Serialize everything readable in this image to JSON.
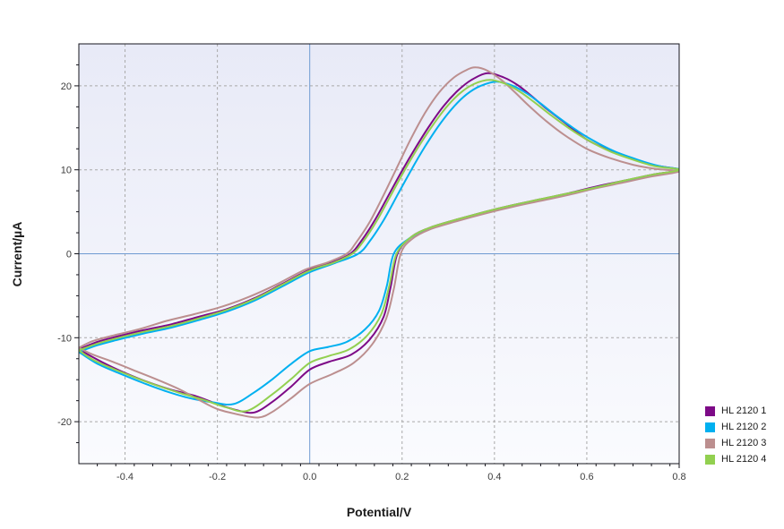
{
  "chart_data": {
    "type": "line",
    "title": "",
    "xlabel": "Potential/V",
    "ylabel": "Current/µA",
    "xlim": [
      -0.5,
      0.8
    ],
    "ylim": [
      -25,
      25
    ],
    "x_tick_values": [
      -0.4,
      -0.2,
      0.0,
      0.2,
      0.4,
      0.6,
      0.8
    ],
    "x_tick_labels": [
      "-0.4",
      "-0.2",
      "0.0",
      "0.2",
      "0.4",
      "0.6",
      "0.8"
    ],
    "x_minor_tick_step": 0.04,
    "y_tick_values": [
      20,
      10,
      0,
      -10,
      -20
    ],
    "y_tick_labels": [
      "20",
      "10",
      "0",
      "-10",
      "-20"
    ],
    "y_minor_tick_step": 2.5,
    "grid": {
      "style": "dashed",
      "color": "#a9a9a9",
      "on_major_ticks": true
    },
    "zero_axis_lines": {
      "color": "#6f9ad2",
      "x_zero": true,
      "y_zero": true
    },
    "plot_background": {
      "top": "#e8eaf7",
      "bottom": "#fafbfe"
    },
    "frame_color": "#14141c",
    "legend_position": "outside-right-bottom",
    "series": [
      {
        "name": "HL 2120 1",
        "color": "#7d0a87",
        "anodic_peak": {
          "V": 0.385,
          "uA": 21.5
        },
        "cathodic_peak": {
          "V": -0.12,
          "uA": -18.9
        },
        "points": [
          [
            -0.5,
            -11.4
          ],
          [
            -0.46,
            -10.5
          ],
          [
            -0.42,
            -9.9
          ],
          [
            -0.36,
            -9.1
          ],
          [
            -0.3,
            -8.4
          ],
          [
            -0.24,
            -7.5
          ],
          [
            -0.18,
            -6.6
          ],
          [
            -0.12,
            -5.3
          ],
          [
            -0.06,
            -3.6
          ],
          [
            0,
            -1.9
          ],
          [
            0.05,
            -1
          ],
          [
            0.088,
            0
          ],
          [
            0.11,
            1.4
          ],
          [
            0.14,
            3.9
          ],
          [
            0.17,
            6.9
          ],
          [
            0.2,
            9.9
          ],
          [
            0.23,
            12.7
          ],
          [
            0.26,
            15.3
          ],
          [
            0.29,
            17.6
          ],
          [
            0.32,
            19.4
          ],
          [
            0.35,
            20.7
          ],
          [
            0.385,
            21.5
          ],
          [
            0.42,
            21
          ],
          [
            0.45,
            20.1
          ],
          [
            0.48,
            18.8
          ],
          [
            0.51,
            17.4
          ],
          [
            0.55,
            15.7
          ],
          [
            0.6,
            13.6
          ],
          [
            0.65,
            12.3
          ],
          [
            0.7,
            11.3
          ],
          [
            0.75,
            10.5
          ],
          [
            0.8,
            10
          ],
          [
            0.74,
            9.4
          ],
          [
            0.68,
            8.7
          ],
          [
            0.62,
            8
          ],
          [
            0.56,
            7.2
          ],
          [
            0.5,
            6.5
          ],
          [
            0.44,
            5.8
          ],
          [
            0.38,
            5
          ],
          [
            0.32,
            4.1
          ],
          [
            0.26,
            3.1
          ],
          [
            0.22,
            2
          ],
          [
            0.19,
            0
          ],
          [
            0.175,
            -4
          ],
          [
            0.16,
            -7.5
          ],
          [
            0.13,
            -10.2
          ],
          [
            0.09,
            -12
          ],
          [
            0.04,
            -12.9
          ],
          [
            0,
            -13.8
          ],
          [
            -0.04,
            -15.8
          ],
          [
            -0.08,
            -17.6
          ],
          [
            -0.12,
            -18.9
          ],
          [
            -0.16,
            -18.6
          ],
          [
            -0.2,
            -17.9
          ],
          [
            -0.25,
            -16.9
          ],
          [
            -0.3,
            -16.2
          ],
          [
            -0.35,
            -15.3
          ],
          [
            -0.4,
            -14.2
          ],
          [
            -0.45,
            -12.9
          ],
          [
            -0.5,
            -11.4
          ]
        ]
      },
      {
        "name": "HL 2120 2",
        "color": "#00b0f0",
        "anodic_peak": {
          "V": 0.405,
          "uA": 20.5
        },
        "cathodic_peak": {
          "V": -0.165,
          "uA": -17.9
        },
        "points": [
          [
            -0.5,
            -11.7
          ],
          [
            -0.46,
            -10.9
          ],
          [
            -0.42,
            -10.3
          ],
          [
            -0.36,
            -9.5
          ],
          [
            -0.3,
            -8.8
          ],
          [
            -0.24,
            -7.9
          ],
          [
            -0.18,
            -6.9
          ],
          [
            -0.12,
            -5.6
          ],
          [
            -0.06,
            -3.9
          ],
          [
            0,
            -2.2
          ],
          [
            0.055,
            -1.1
          ],
          [
            0.105,
            0
          ],
          [
            0.13,
            1.5
          ],
          [
            0.16,
            4
          ],
          [
            0.19,
            7
          ],
          [
            0.22,
            10
          ],
          [
            0.25,
            12.8
          ],
          [
            0.28,
            15.3
          ],
          [
            0.31,
            17.4
          ],
          [
            0.34,
            19
          ],
          [
            0.37,
            20
          ],
          [
            0.405,
            20.5
          ],
          [
            0.44,
            20
          ],
          [
            0.47,
            19.1
          ],
          [
            0.5,
            17.9
          ],
          [
            0.53,
            16.6
          ],
          [
            0.57,
            15
          ],
          [
            0.61,
            13.6
          ],
          [
            0.66,
            12.2
          ],
          [
            0.71,
            11.2
          ],
          [
            0.76,
            10.4
          ],
          [
            0.8,
            10
          ],
          [
            0.74,
            9.3
          ],
          [
            0.68,
            8.6
          ],
          [
            0.62,
            7.9
          ],
          [
            0.56,
            7.1
          ],
          [
            0.5,
            6.4
          ],
          [
            0.44,
            5.7
          ],
          [
            0.38,
            4.9
          ],
          [
            0.32,
            4
          ],
          [
            0.26,
            3
          ],
          [
            0.215,
            1.8
          ],
          [
            0.182,
            0
          ],
          [
            0.167,
            -3.8
          ],
          [
            0.15,
            -6.8
          ],
          [
            0.12,
            -9
          ],
          [
            0.08,
            -10.5
          ],
          [
            0.04,
            -11.1
          ],
          [
            0,
            -11.6
          ],
          [
            -0.04,
            -13.1
          ],
          [
            -0.08,
            -14.9
          ],
          [
            -0.12,
            -16.5
          ],
          [
            -0.165,
            -17.9
          ],
          [
            -0.21,
            -17.7
          ],
          [
            -0.26,
            -17.2
          ],
          [
            -0.31,
            -16.4
          ],
          [
            -0.36,
            -15.4
          ],
          [
            -0.41,
            -14.3
          ],
          [
            -0.46,
            -13.1
          ],
          [
            -0.5,
            -11.7
          ]
        ]
      },
      {
        "name": "HL 2120 3",
        "color": "#bc8f8f",
        "anodic_peak": {
          "V": 0.36,
          "uA": 22.2
        },
        "cathodic_peak": {
          "V": -0.11,
          "uA": -19.5
        },
        "points": [
          [
            -0.5,
            -11.2
          ],
          [
            -0.47,
            -10.4
          ],
          [
            -0.43,
            -9.8
          ],
          [
            -0.37,
            -9
          ],
          [
            -0.31,
            -8
          ],
          [
            -0.25,
            -7.2
          ],
          [
            -0.19,
            -6.3
          ],
          [
            -0.13,
            -5.1
          ],
          [
            -0.07,
            -3.6
          ],
          [
            -0.01,
            -1.9
          ],
          [
            0.04,
            -1
          ],
          [
            0.08,
            0
          ],
          [
            0.1,
            1.3
          ],
          [
            0.13,
            3.8
          ],
          [
            0.16,
            7
          ],
          [
            0.19,
            10.4
          ],
          [
            0.22,
            13.8
          ],
          [
            0.25,
            16.8
          ],
          [
            0.28,
            19.2
          ],
          [
            0.31,
            20.9
          ],
          [
            0.34,
            21.9
          ],
          [
            0.36,
            22.2
          ],
          [
            0.385,
            21.8
          ],
          [
            0.415,
            20.7
          ],
          [
            0.445,
            19.2
          ],
          [
            0.475,
            17.6
          ],
          [
            0.51,
            15.9
          ],
          [
            0.55,
            14.2
          ],
          [
            0.6,
            12.5
          ],
          [
            0.65,
            11.4
          ],
          [
            0.7,
            10.6
          ],
          [
            0.75,
            10.1
          ],
          [
            0.8,
            9.8
          ],
          [
            0.74,
            9.2
          ],
          [
            0.68,
            8.5
          ],
          [
            0.62,
            7.8
          ],
          [
            0.56,
            7
          ],
          [
            0.5,
            6.3
          ],
          [
            0.44,
            5.6
          ],
          [
            0.38,
            4.8
          ],
          [
            0.32,
            3.9
          ],
          [
            0.26,
            2.9
          ],
          [
            0.22,
            1.7
          ],
          [
            0.197,
            0
          ],
          [
            0.182,
            -4.2
          ],
          [
            0.165,
            -7.8
          ],
          [
            0.135,
            -10.8
          ],
          [
            0.095,
            -13
          ],
          [
            0.05,
            -14.3
          ],
          [
            0,
            -15.5
          ],
          [
            -0.04,
            -17.2
          ],
          [
            -0.08,
            -18.8
          ],
          [
            -0.11,
            -19.5
          ],
          [
            -0.15,
            -19.2
          ],
          [
            -0.2,
            -18.5
          ],
          [
            -0.24,
            -17.4
          ],
          [
            -0.28,
            -16.2
          ],
          [
            -0.33,
            -15
          ],
          [
            -0.38,
            -13.9
          ],
          [
            -0.43,
            -12.8
          ],
          [
            -0.47,
            -12
          ],
          [
            -0.5,
            -11.2
          ]
        ]
      },
      {
        "name": "HL 2120 4",
        "color": "#92d050",
        "anodic_peak": {
          "V": 0.39,
          "uA": 20.7
        },
        "cathodic_peak": {
          "V": -0.135,
          "uA": -18.7
        },
        "points": [
          [
            -0.5,
            -11.5
          ],
          [
            -0.46,
            -10.7
          ],
          [
            -0.42,
            -10.1
          ],
          [
            -0.36,
            -9.3
          ],
          [
            -0.3,
            -8.6
          ],
          [
            -0.24,
            -7.7
          ],
          [
            -0.18,
            -6.7
          ],
          [
            -0.12,
            -5.4
          ],
          [
            -0.06,
            -3.7
          ],
          [
            0,
            -2
          ],
          [
            0.05,
            -1.1
          ],
          [
            0.092,
            0
          ],
          [
            0.115,
            1.4
          ],
          [
            0.145,
            3.9
          ],
          [
            0.175,
            6.9
          ],
          [
            0.205,
            9.9
          ],
          [
            0.235,
            12.7
          ],
          [
            0.265,
            15.2
          ],
          [
            0.295,
            17.4
          ],
          [
            0.325,
            19.1
          ],
          [
            0.355,
            20.2
          ],
          [
            0.39,
            20.7
          ],
          [
            0.425,
            20.2
          ],
          [
            0.455,
            19.3
          ],
          [
            0.485,
            18.1
          ],
          [
            0.52,
            16.6
          ],
          [
            0.56,
            15
          ],
          [
            0.6,
            13.6
          ],
          [
            0.65,
            12.2
          ],
          [
            0.7,
            11.2
          ],
          [
            0.75,
            10.4
          ],
          [
            0.8,
            10
          ],
          [
            0.74,
            9.4
          ],
          [
            0.68,
            8.7
          ],
          [
            0.62,
            7.9
          ],
          [
            0.56,
            7.2
          ],
          [
            0.5,
            6.5
          ],
          [
            0.44,
            5.8
          ],
          [
            0.38,
            5
          ],
          [
            0.32,
            4.1
          ],
          [
            0.26,
            3.1
          ],
          [
            0.22,
            2
          ],
          [
            0.188,
            0
          ],
          [
            0.172,
            -3.9
          ],
          [
            0.155,
            -7.2
          ],
          [
            0.125,
            -9.7
          ],
          [
            0.085,
            -11.4
          ],
          [
            0.04,
            -12.2
          ],
          [
            0,
            -13
          ],
          [
            -0.04,
            -14.9
          ],
          [
            -0.08,
            -16.7
          ],
          [
            -0.135,
            -18.7
          ],
          [
            -0.18,
            -18.3
          ],
          [
            -0.23,
            -17.4
          ],
          [
            -0.28,
            -16.6
          ],
          [
            -0.33,
            -15.7
          ],
          [
            -0.38,
            -14.7
          ],
          [
            -0.43,
            -13.6
          ],
          [
            -0.47,
            -12.6
          ],
          [
            -0.5,
            -11.5
          ]
        ]
      }
    ]
  }
}
